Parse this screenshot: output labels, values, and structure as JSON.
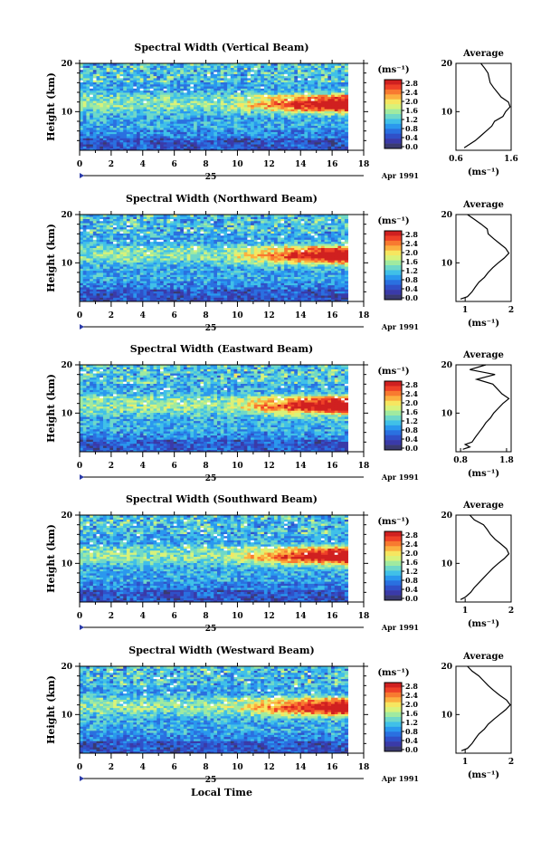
{
  "figure": {
    "xlabel": "Local Time",
    "date_label": "Apr 1991",
    "day_label": "25",
    "unit_label": "(ms⁻¹)",
    "average_title": "Average",
    "colorbar_ticks": [
      "2.8",
      "2.4",
      "2.0",
      "1.6",
      "1.2",
      "0.8",
      "0.4",
      "0.0"
    ],
    "colorbar_colors": [
      "#d02020",
      "#ee4028",
      "#f87a30",
      "#fbb040",
      "#f6e660",
      "#d8f27a",
      "#a0eaa0",
      "#6fd8c8",
      "#40c0e8",
      "#2a98ee",
      "#2a70e0",
      "#3050c8",
      "#3a3aa8",
      "#3a3a70"
    ]
  },
  "chart_data": [
    {
      "type": "heatmap",
      "title": "Spectral Width (Vertical Beam)",
      "ylabel": "Height (km)",
      "x_ticks": [
        "0",
        "2",
        "4",
        "6",
        "8",
        "10",
        "12",
        "14",
        "16",
        "18"
      ],
      "xlim": [
        0,
        18
      ],
      "y_ticks": [
        "20",
        "10"
      ],
      "ylim": [
        2,
        20
      ],
      "color_scale": [
        0.0,
        3.0
      ],
      "average_profile": {
        "xlabel": "(ms⁻¹)",
        "x_ticks": [
          "0.6",
          "1.6"
        ],
        "xlim": [
          0.6,
          1.6
        ],
        "heights": [
          2.5,
          4,
          5,
          6,
          7,
          8,
          9,
          10,
          11,
          12,
          13,
          14,
          15,
          16,
          17,
          18,
          19,
          20
        ],
        "values": [
          0.75,
          0.95,
          1.05,
          1.15,
          1.25,
          1.3,
          1.45,
          1.5,
          1.58,
          1.55,
          1.42,
          1.35,
          1.28,
          1.22,
          1.2,
          1.18,
          1.12,
          1.05
        ]
      }
    },
    {
      "type": "heatmap",
      "title": "Spectral Width (Northward Beam)",
      "ylabel": "Height (km)",
      "x_ticks": [
        "0",
        "2",
        "4",
        "6",
        "8",
        "10",
        "12",
        "14",
        "16",
        "18"
      ],
      "xlim": [
        0,
        18
      ],
      "y_ticks": [
        "20",
        "10"
      ],
      "ylim": [
        2,
        20
      ],
      "color_scale": [
        0.0,
        3.0
      ],
      "average_profile": {
        "xlabel": "(ms⁻¹)",
        "x_ticks": [
          "1",
          "2"
        ],
        "xlim": [
          0.8,
          2.0
        ],
        "heights": [
          2.5,
          3,
          4,
          5,
          6,
          7,
          8,
          9,
          10,
          11,
          12,
          13,
          14,
          15,
          16,
          17,
          18,
          19,
          20
        ],
        "values": [
          0.9,
          1.05,
          1.15,
          1.22,
          1.3,
          1.42,
          1.5,
          1.6,
          1.72,
          1.85,
          1.95,
          1.88,
          1.75,
          1.62,
          1.5,
          1.48,
          1.35,
          1.2,
          1.05
        ]
      }
    },
    {
      "type": "heatmap",
      "title": "Spectral Width (Eastward Beam)",
      "ylabel": "Height (km)",
      "x_ticks": [
        "0",
        "2",
        "4",
        "6",
        "8",
        "10",
        "12",
        "14",
        "16",
        "18"
      ],
      "xlim": [
        0,
        18
      ],
      "y_ticks": [
        "20",
        "10"
      ],
      "ylim": [
        2,
        20
      ],
      "color_scale": [
        0.0,
        3.0
      ],
      "average_profile": {
        "xlabel": "(ms⁻¹)",
        "x_ticks": [
          "0.8",
          "1.8"
        ],
        "xlim": [
          0.7,
          1.9
        ],
        "heights": [
          2.5,
          3,
          3.5,
          4,
          5,
          6,
          7,
          8,
          9,
          10,
          11,
          12,
          13,
          14,
          15,
          16,
          17,
          18,
          19,
          20
        ],
        "values": [
          0.85,
          1.0,
          0.9,
          1.05,
          1.12,
          1.2,
          1.28,
          1.35,
          1.45,
          1.52,
          1.62,
          1.72,
          1.85,
          1.7,
          1.6,
          1.5,
          1.15,
          1.55,
          1.0,
          1.35
        ]
      }
    },
    {
      "type": "heatmap",
      "title": "Spectral Width (Southward Beam)",
      "ylabel": "Height (km)",
      "x_ticks": [
        "0",
        "2",
        "4",
        "6",
        "8",
        "10",
        "12",
        "14",
        "16",
        "18"
      ],
      "xlim": [
        0,
        18
      ],
      "y_ticks": [
        "20",
        "10"
      ],
      "ylim": [
        2,
        20
      ],
      "color_scale": [
        0.0,
        3.0
      ],
      "average_profile": {
        "xlabel": "(ms⁻¹)",
        "x_ticks": [
          "1",
          "2"
        ],
        "xlim": [
          0.8,
          2.0
        ],
        "heights": [
          2.5,
          3,
          4,
          5,
          6,
          7,
          8,
          9,
          10,
          11,
          12,
          13,
          14,
          15,
          16,
          17,
          18,
          19,
          20
        ],
        "values": [
          0.9,
          1.0,
          1.12,
          1.2,
          1.3,
          1.4,
          1.5,
          1.6,
          1.72,
          1.85,
          1.95,
          1.9,
          1.78,
          1.65,
          1.55,
          1.48,
          1.4,
          1.2,
          1.1
        ]
      }
    },
    {
      "type": "heatmap",
      "title": "Spectral Width (Westward Beam)",
      "ylabel": "Height (km)",
      "x_ticks": [
        "0",
        "2",
        "4",
        "6",
        "8",
        "10",
        "12",
        "14",
        "16",
        "18"
      ],
      "xlim": [
        0,
        18
      ],
      "y_ticks": [
        "20",
        "10"
      ],
      "ylim": [
        2,
        20
      ],
      "color_scale": [
        0.0,
        3.0
      ],
      "average_profile": {
        "xlabel": "(ms⁻¹)",
        "x_ticks": [
          "1",
          "2"
        ],
        "xlim": [
          0.8,
          2.0
        ],
        "heights": [
          2.5,
          3,
          4,
          5,
          6,
          7,
          8,
          9,
          10,
          11,
          12,
          13,
          14,
          15,
          16,
          17,
          18,
          19,
          20
        ],
        "values": [
          0.92,
          1.05,
          1.15,
          1.22,
          1.3,
          1.42,
          1.5,
          1.62,
          1.75,
          1.88,
          1.98,
          1.9,
          1.75,
          1.62,
          1.5,
          1.4,
          1.3,
          1.15,
          1.05
        ]
      }
    }
  ]
}
